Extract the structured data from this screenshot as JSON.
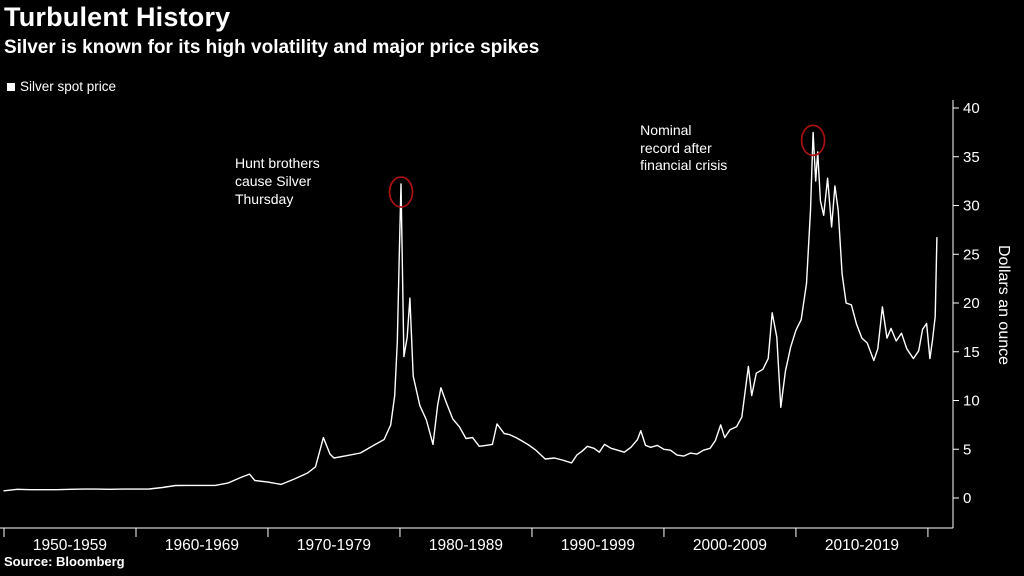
{
  "chart_data": {
    "type": "line",
    "title": "Turbulent History",
    "subtitle": "Silver is known for its high volatility and major price spikes",
    "series_name": "Silver spot price",
    "source": "Source: Bloomberg",
    "ylabel": "Dollars an ounce",
    "ylim": [
      0,
      40
    ],
    "yticks": [
      0,
      5,
      10,
      15,
      20,
      25,
      30,
      35,
      40
    ],
    "xlim": [
      1950,
      2021.9
    ],
    "x_ticks": [
      1950,
      1960,
      1970,
      1980,
      1990,
      2000,
      2010,
      2020
    ],
    "x_tick_labels": [
      "1950-1959",
      "1960-1969",
      "1970-1979",
      "1980-1989",
      "1990-1999",
      "2000-2009",
      "2010-2019"
    ],
    "grid": false,
    "legend_position": "top-left",
    "background_color": "#000000",
    "line_color": "#ffffff",
    "axis_color": "#ffffff",
    "text_color": "#ffffff",
    "annotation_circle_color": "#aa1111",
    "annotations": [
      {
        "text": "Hunt brothers\ncause Silver\nThursday",
        "x": 1967.5,
        "y": 35.2
      },
      {
        "text": "Nominal\nrecord after\nfinancial crisis",
        "x": 1998.2,
        "y": 38.6
      }
    ],
    "circles": [
      {
        "x": 1980.08,
        "y": 32.2
      },
      {
        "x": 2011.3,
        "y": 37.5
      }
    ],
    "x": [
      1950,
      1951,
      1952,
      1953,
      1954,
      1955,
      1956,
      1957,
      1958,
      1959,
      1960,
      1961,
      1962,
      1963,
      1964,
      1965,
      1966,
      1967,
      1968,
      1968.6,
      1969,
      1970,
      1971,
      1972,
      1973,
      1973.6,
      1974.2,
      1974.7,
      1975,
      1976,
      1977,
      1978,
      1978.8,
      1979.3,
      1979.6,
      1979.8,
      1979.95,
      1980.08,
      1980.3,
      1980.55,
      1980.75,
      1981,
      1981.5,
      1982,
      1982.5,
      1982.85,
      1983.1,
      1983.5,
      1984,
      1984.5,
      1985,
      1985.5,
      1986,
      1986.5,
      1987,
      1987.35,
      1987.9,
      1988.3,
      1988.8,
      1989.3,
      1989.8,
      1990.3,
      1991,
      1991.7,
      1992.3,
      1993,
      1993.4,
      1993.8,
      1994.2,
      1994.7,
      1995.1,
      1995.5,
      1996,
      1996.5,
      1997,
      1997.5,
      1998,
      1998.25,
      1998.6,
      1999,
      1999.5,
      2000,
      2000.5,
      2001,
      2001.5,
      2002,
      2002.5,
      2003,
      2003.5,
      2003.9,
      2004.3,
      2004.6,
      2005,
      2005.5,
      2005.9,
      2006.4,
      2006.65,
      2007,
      2007.5,
      2007.9,
      2008.2,
      2008.55,
      2008.85,
      2009.2,
      2009.6,
      2010,
      2010.4,
      2010.8,
      2011.1,
      2011.3,
      2011.5,
      2011.65,
      2011.85,
      2012.1,
      2012.4,
      2012.7,
      2012.95,
      2013.2,
      2013.5,
      2013.8,
      2014.2,
      2014.6,
      2015,
      2015.4,
      2015.9,
      2016.2,
      2016.55,
      2016.9,
      2017.2,
      2017.6,
      2018,
      2018.4,
      2018.9,
      2019.3,
      2019.6,
      2019.9,
      2020.15,
      2020.35,
      2020.55,
      2020.68
    ],
    "values": [
      0.74,
      0.89,
      0.85,
      0.85,
      0.85,
      0.89,
      0.91,
      0.91,
      0.89,
      0.91,
      0.91,
      0.92,
      1.08,
      1.28,
      1.29,
      1.29,
      1.29,
      1.55,
      2.14,
      2.45,
      1.79,
      1.63,
      1.39,
      1.95,
      2.56,
      3.2,
      6.2,
      4.5,
      4.1,
      4.35,
      4.62,
      5.4,
      6.0,
      7.5,
      10.5,
      16.0,
      25.0,
      32.2,
      14.5,
      16.5,
      20.5,
      12.5,
      9.5,
      8.0,
      5.5,
      9.5,
      11.3,
      9.8,
      8.1,
      7.3,
      6.1,
      6.2,
      5.3,
      5.4,
      5.5,
      7.6,
      6.6,
      6.5,
      6.2,
      5.8,
      5.4,
      4.9,
      4.0,
      4.1,
      3.9,
      3.6,
      4.4,
      4.8,
      5.3,
      5.1,
      4.7,
      5.5,
      5.1,
      4.9,
      4.7,
      5.2,
      6.0,
      6.9,
      5.4,
      5.2,
      5.4,
      5.0,
      4.9,
      4.4,
      4.3,
      4.6,
      4.5,
      4.9,
      5.1,
      5.9,
      7.5,
      6.2,
      7.0,
      7.3,
      8.3,
      13.5,
      10.5,
      12.8,
      13.2,
      14.3,
      19.0,
      16.5,
      9.3,
      13.0,
      15.5,
      17.2,
      18.3,
      22.0,
      29.5,
      37.5,
      32.5,
      35.5,
      30.5,
      29.0,
      32.8,
      27.8,
      32.0,
      29.5,
      23.0,
      20.0,
      19.8,
      17.8,
      16.4,
      15.9,
      14.1,
      15.3,
      19.6,
      16.4,
      17.4,
      16.1,
      16.9,
      15.3,
      14.3,
      15.1,
      17.3,
      17.9,
      14.3,
      16.2,
      18.6,
      26.7
    ]
  }
}
